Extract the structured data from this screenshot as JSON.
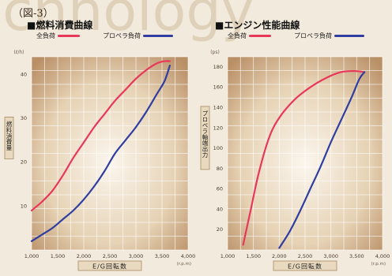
{
  "figure_label": "（図-3）",
  "legend_labels": {
    "full_load": "全負荷",
    "propeller_load": "プロペラ負荷"
  },
  "colors": {
    "full_load": "#e8375a",
    "propeller_load": "#2f3ea0",
    "background": "#f2eadc"
  },
  "watermark_text": "echnology",
  "chart_data": [
    {
      "type": "line",
      "title": "■燃料消費曲線",
      "xlabel": "E/G回転数",
      "ylabel": "燃料消費量",
      "x_unit": "(r.p.m)",
      "y_unit": "(ℓ/h)",
      "xlim": [
        1000,
        4000
      ],
      "ylim": [
        0,
        44
      ],
      "x_ticks": [
        1000,
        1500,
        2000,
        2500,
        3000,
        3500,
        4000
      ],
      "x_tick_labels": [
        "1,000",
        "1,500",
        "2,000",
        "2,500",
        "3,000",
        "3,500",
        "4,000"
      ],
      "y_ticks": [
        10,
        20,
        30,
        40
      ],
      "y_tick_labels": [
        "10",
        "20",
        "30",
        "40"
      ],
      "series": [
        {
          "name": "全負荷",
          "color": "#e8375a",
          "x": [
            1000,
            1200,
            1400,
            1600,
            1800,
            2000,
            2200,
            2400,
            2600,
            2800,
            3000,
            3200,
            3400,
            3550,
            3650
          ],
          "y": [
            9,
            11,
            13.5,
            17,
            21,
            24.5,
            28,
            31,
            34,
            36.5,
            39,
            41,
            42.5,
            43,
            43
          ]
        },
        {
          "name": "プロペラ負荷",
          "color": "#2f3ea0",
          "x": [
            1000,
            1200,
            1400,
            1600,
            1800,
            2000,
            2200,
            2400,
            2600,
            2800,
            3000,
            3200,
            3400,
            3550,
            3650
          ],
          "y": [
            2,
            3.5,
            5,
            7,
            9,
            11.5,
            14.5,
            18,
            22,
            25,
            28,
            31.5,
            35.5,
            38.5,
            42
          ]
        }
      ]
    },
    {
      "type": "line",
      "title": "■エンジン性能曲線",
      "xlabel": "E/G回転数",
      "ylabel": "プロペラ軸端出力",
      "x_unit": "(r.p.m)",
      "y_unit": "(ps)",
      "xlim": [
        1000,
        4000
      ],
      "ylim": [
        0,
        190
      ],
      "x_ticks": [
        1000,
        1500,
        2000,
        2500,
        3000,
        3500,
        4000
      ],
      "x_tick_labels": [
        "1,000",
        "1,500",
        "2,000",
        "2,500",
        "3,000",
        "3,500",
        "4,000"
      ],
      "y_ticks": [
        20,
        40,
        60,
        80,
        100,
        120,
        140,
        160,
        180
      ],
      "y_tick_labels": [
        "20",
        "40",
        "60",
        "80",
        "100",
        "120",
        "140",
        "160",
        "180"
      ],
      "series": [
        {
          "name": "全負荷",
          "color": "#e8375a",
          "x": [
            1300,
            1450,
            1600,
            1800,
            2000,
            2300,
            2600,
            2900,
            3200,
            3450,
            3650
          ],
          "y": [
            5,
            40,
            75,
            110,
            130,
            148,
            160,
            169,
            175,
            176,
            175
          ]
        },
        {
          "name": "プロペラ負荷",
          "color": "#2f3ea0",
          "x": [
            2000,
            2200,
            2400,
            2600,
            2800,
            3000,
            3200,
            3400,
            3550,
            3650
          ],
          "y": [
            2,
            18,
            38,
            60,
            82,
            106,
            128,
            150,
            168,
            175
          ]
        }
      ]
    }
  ]
}
